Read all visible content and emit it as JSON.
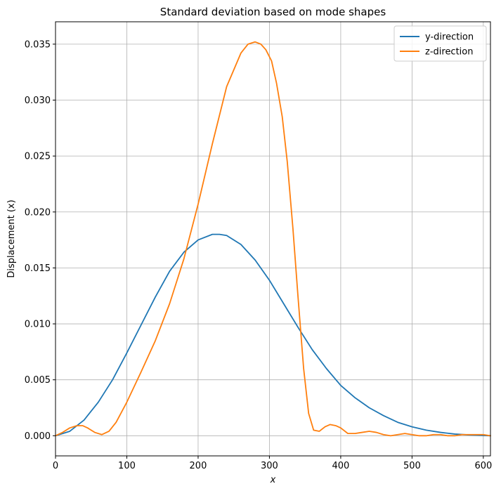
{
  "chart_data": {
    "type": "line",
    "title": "Standard deviation based on mode shapes",
    "xlabel": "x",
    "ylabel": "Displacement (x)",
    "xlim": [
      0,
      610
    ],
    "ylim": [
      -0.0018,
      0.037
    ],
    "xticks": [
      0,
      100,
      200,
      300,
      400,
      500,
      600
    ],
    "xtick_labels": [
      "0",
      "100",
      "200",
      "300",
      "400",
      "500",
      "600"
    ],
    "yticks": [
      0.0,
      0.005,
      0.01,
      0.015,
      0.02,
      0.025,
      0.03,
      0.035
    ],
    "ytick_labels": [
      "0.000",
      "0.005",
      "0.010",
      "0.015",
      "0.020",
      "0.025",
      "0.030",
      "0.035"
    ],
    "grid": true,
    "legend_position": "top-right",
    "series": [
      {
        "name": "y-direction",
        "color": "#1f77b4",
        "x": [
          0,
          20,
          40,
          60,
          80,
          100,
          120,
          140,
          160,
          180,
          200,
          220,
          230,
          240,
          260,
          280,
          300,
          320,
          340,
          360,
          380,
          400,
          420,
          440,
          460,
          480,
          500,
          520,
          540,
          560,
          580,
          600,
          610
        ],
        "y": [
          0.0,
          0.0004,
          0.0014,
          0.003,
          0.005,
          0.0074,
          0.0099,
          0.0124,
          0.0147,
          0.0164,
          0.0175,
          0.018,
          0.018,
          0.0179,
          0.0171,
          0.0157,
          0.0139,
          0.0118,
          0.0097,
          0.0077,
          0.006,
          0.0045,
          0.0034,
          0.0025,
          0.0018,
          0.0012,
          0.0008,
          0.0005,
          0.0003,
          0.00015,
          7e-05,
          2e-05,
          0.0
        ]
      },
      {
        "name": "z-direction",
        "color": "#ff7f0e",
        "x": [
          0,
          10,
          20,
          30,
          38,
          45,
          55,
          65,
          75,
          85,
          100,
          120,
          140,
          160,
          180,
          200,
          220,
          240,
          260,
          270,
          280,
          288,
          295,
          303,
          310,
          318,
          325,
          333,
          340,
          348,
          355,
          362,
          370,
          378,
          385,
          393,
          400,
          410,
          420,
          430,
          440,
          450,
          460,
          470,
          480,
          490,
          500,
          510,
          520,
          530,
          540,
          550,
          560,
          570,
          580,
          590,
          600,
          610
        ],
        "y": [
          0.0,
          0.0003,
          0.0007,
          0.0009,
          0.0009,
          0.0007,
          0.0003,
          0.0001,
          0.0004,
          0.0012,
          0.003,
          0.0057,
          0.0085,
          0.0118,
          0.0158,
          0.0207,
          0.0261,
          0.0312,
          0.0342,
          0.035,
          0.0352,
          0.035,
          0.0345,
          0.0335,
          0.0315,
          0.0285,
          0.0245,
          0.0185,
          0.0125,
          0.006,
          0.002,
          0.0005,
          0.0004,
          0.0008,
          0.001,
          0.0009,
          0.0007,
          0.0002,
          0.0002,
          0.0003,
          0.0004,
          0.0003,
          0.0001,
          0.0,
          0.0001,
          0.0002,
          0.0001,
          0.0,
          0.0,
          0.0001,
          0.0001,
          0.0,
          0.0,
          0.0001,
          0.0001,
          0.0001,
          0.0001,
          0.0
        ]
      }
    ]
  }
}
